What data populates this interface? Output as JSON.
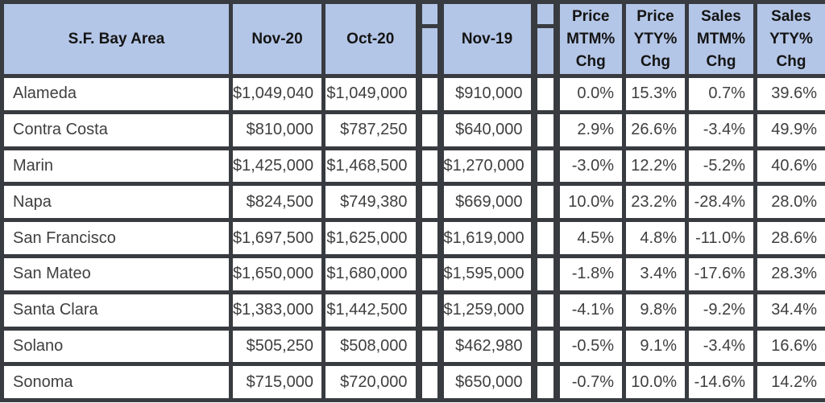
{
  "chart_data": {
    "type": "table",
    "header": [
      "S.F. Bay Area",
      "Nov-20",
      "Oct-20",
      "",
      "Nov-19",
      "",
      "Price\nMTM%\nChg",
      "Price\nYTY%\nChg",
      "Sales\nMTM%\nChg",
      "Sales\nYTY%\nChg"
    ],
    "rows": [
      [
        "Alameda",
        "$1,049,040",
        "$1,049,000",
        "$910,000",
        "0.0%",
        "15.3%",
        "0.7%",
        "39.6%"
      ],
      [
        "Contra Costa",
        "$810,000",
        "$787,250",
        "$640,000",
        "2.9%",
        "26.6%",
        "-3.4%",
        "49.9%"
      ],
      [
        "Marin",
        "$1,425,000",
        "$1,468,500",
        "$1,270,000",
        "-3.0%",
        "12.2%",
        "-5.2%",
        "40.6%"
      ],
      [
        "Napa",
        "$824,500",
        "$749,380",
        "$669,000",
        "10.0%",
        "23.2%",
        "-28.4%",
        "28.0%"
      ],
      [
        "San Francisco",
        "$1,697,500",
        "$1,625,000",
        "$1,619,000",
        "4.5%",
        "4.8%",
        "-11.0%",
        "28.6%"
      ],
      [
        "San Mateo",
        "$1,650,000",
        "$1,680,000",
        "$1,595,000",
        "-1.8%",
        "3.4%",
        "-17.6%",
        "28.3%"
      ],
      [
        "Santa Clara",
        "$1,383,000",
        "$1,442,500",
        "$1,259,000",
        "-4.1%",
        "9.8%",
        "-9.2%",
        "34.4%"
      ],
      [
        "Solano",
        "$505,250",
        "$508,000",
        "$462,980",
        "-0.5%",
        "9.1%",
        "-3.4%",
        "16.6%"
      ],
      [
        "Sonoma",
        "$715,000",
        "$720,000",
        "$650,000",
        "-0.7%",
        "10.0%",
        "-14.6%",
        "14.2%"
      ]
    ]
  },
  "colors": {
    "header_bg": "#b4c6e7",
    "border": "#383b40",
    "cell_bg": "#ffffff",
    "data_text": "#3f3f3f",
    "header_text": "#141414"
  }
}
